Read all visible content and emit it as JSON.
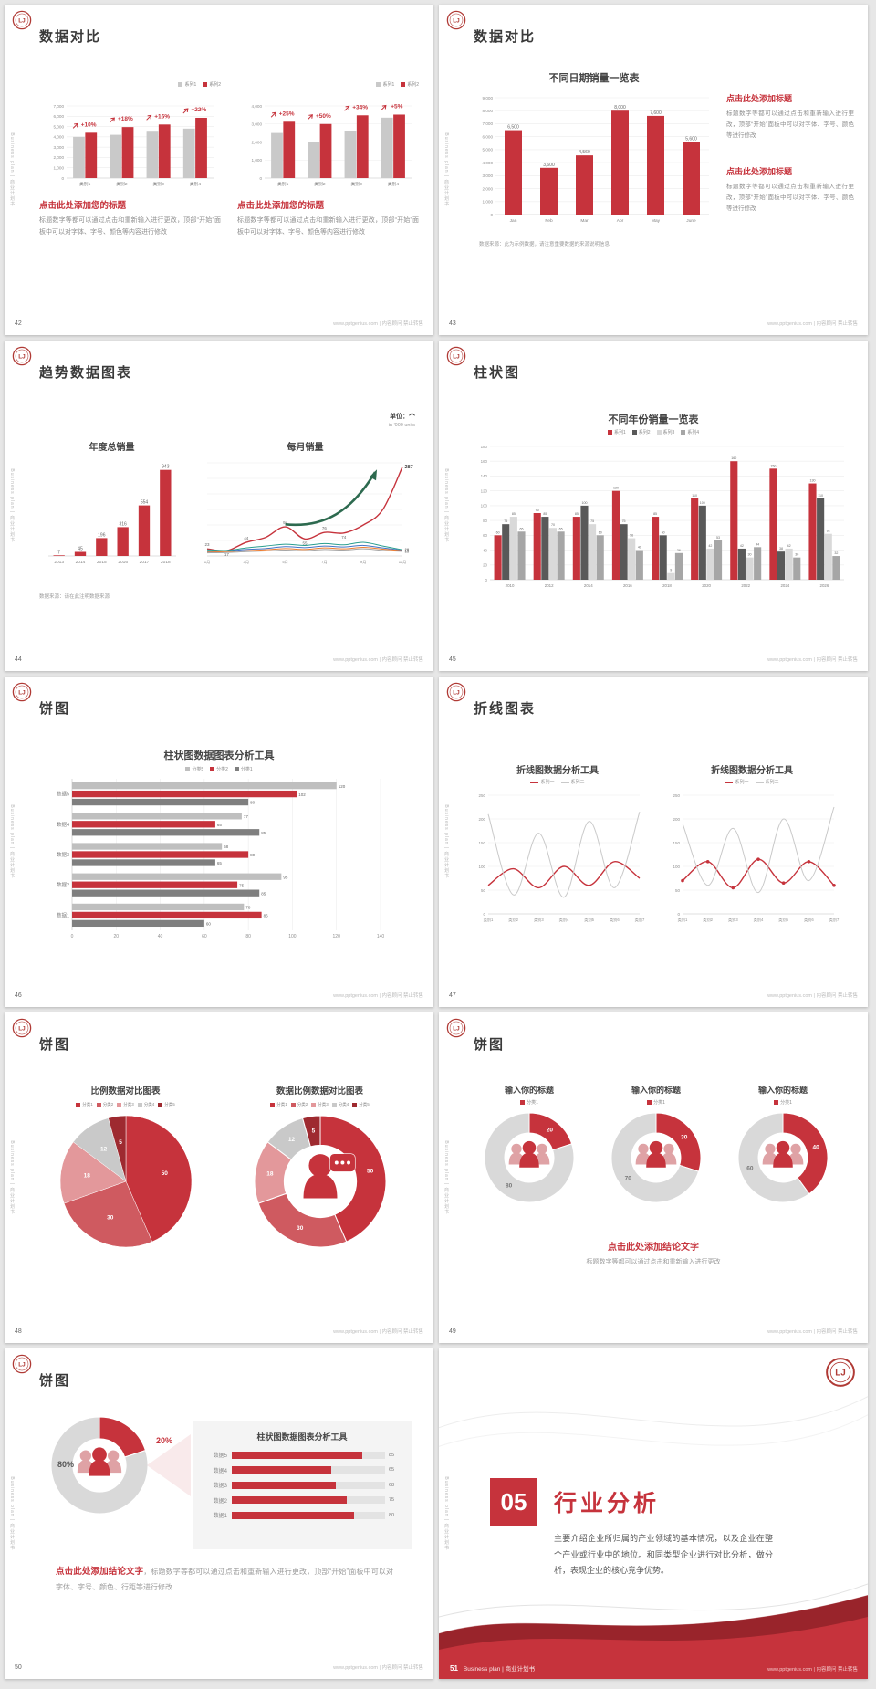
{
  "page": {
    "sidebar_text": "Business plan | 商业计划书",
    "footer_site": "www.pptgenius.com | 内容顾问 禁止转售",
    "accent": "#c6333c"
  },
  "common": {
    "edit_body": "标题数字等都可以通过点击和重新输入进行更改，顶部“开始”面板中可以对字体、字号、颜色等内容进行修改",
    "edit_body2": "标题数字等都可以通过点击和重新输入进行更改，顶部“开始”面板中可以对字体、字号、颜色等进行修改"
  },
  "slides": [
    {
      "page_no": "42",
      "title": "数据对比",
      "charts": [
        {
          "type": "bar",
          "ymax": 7000,
          "ystep": 1000,
          "bwr": 0.66,
          "legend": [
            {
              "label": "系列1",
              "color": "#c9c9c9"
            },
            {
              "label": "系列2",
              "color": "#c6333c"
            }
          ],
          "categories": [
            "类别1",
            "类别2",
            "类别3",
            "类别4"
          ],
          "series": [
            {
              "name": "系列1",
              "color": "#c9c9c9",
              "values": [
                4000,
                4200,
                4500,
                4800
              ]
            },
            {
              "name": "系列2",
              "color": "#c6333c",
              "values": [
                4400,
                4950,
                5200,
                5850
              ]
            }
          ],
          "growth_labels": [
            "+10%",
            "+18%",
            "+16%",
            "+22%"
          ]
        },
        {
          "type": "bar",
          "ymax": 4000,
          "ystep": 1000,
          "bwr": 0.66,
          "legend": [
            {
              "label": "系列1",
              "color": "#c9c9c9"
            },
            {
              "label": "系列2",
              "color": "#c6333c"
            }
          ],
          "categories": [
            "类别1",
            "类别2",
            "类别3",
            "类别4"
          ],
          "series": [
            {
              "name": "系列1",
              "color": "#c9c9c9",
              "values": [
                2500,
                2000,
                2600,
                3350
              ]
            },
            {
              "name": "系列2",
              "color": "#c6333c",
              "values": [
                3125,
                3000,
                3480,
                3520
              ]
            }
          ],
          "growth_labels": [
            "+25%",
            "+50%",
            "+34%",
            "+5%"
          ]
        }
      ],
      "blocks": [
        {
          "heading": "点击此处添加您的标题"
        },
        {
          "heading": "点击此处添加您的标题"
        }
      ]
    },
    {
      "page_no": "43",
      "title": "数据对比",
      "chart_title": "不同日期销量一览表",
      "chart": {
        "type": "bar",
        "ymax": 9000,
        "ystep": 1000,
        "bwr": 0.5,
        "show_labels": true,
        "lfs": 5,
        "categories": [
          "Jan",
          "Feb",
          "Mar",
          "Apr",
          "May",
          "June"
        ],
        "series": [
          {
            "name": "销量",
            "color": "#c6333c",
            "values": [
              6500,
              3600,
              4560,
              8000,
              7600,
              5600
            ]
          }
        ]
      },
      "note": "数据来源：此为示例数据，请注意重要数据的来源说明信息",
      "blocks": [
        {
          "heading": "点击此处添加标题"
        },
        {
          "heading": "点击此处添加标题"
        }
      ]
    },
    {
      "page_no": "44",
      "title": "趋势数据图表",
      "unit_label": "单位：个",
      "unit_sub": "in '000 units",
      "left_title": "年度总销量",
      "right_title": "每月销量",
      "left_chart": {
        "type": "bar",
        "ymax": 1000,
        "ystep": 250,
        "bwr": 0.55,
        "hide_y": true,
        "hide_grid": true,
        "show_labels": true,
        "lfs": 5,
        "categories": [
          "2013",
          "2014",
          "2015",
          "2016",
          "2017",
          "2018"
        ],
        "series": [
          {
            "name": "年度总销量",
            "color": "#c6333c",
            "values": [
              7,
              45,
              196,
              316,
              554,
              943
            ]
          }
        ]
      },
      "right_chart": {
        "type": "line",
        "ymax": 300,
        "ystep": 50,
        "hide_y": true,
        "smooth": true,
        "arrow": true,
        "x": [
          "1月",
          "2月",
          "3月",
          "4月",
          "5月",
          "6月",
          "7月",
          "8月",
          "9月",
          "10月",
          "11月"
        ],
        "xticks": [
          "1月",
          "3月",
          "5月",
          "7月",
          "9月",
          "11月"
        ],
        "series": [
          {
            "name": "系列1",
            "color": "#c6333c",
            "values": [
              23,
              17,
              44,
              60,
              94,
              55,
              76,
              74,
              100,
              150,
              287
            ],
            "width": 1.4,
            "end_label": "287"
          },
          {
            "name": "系列2",
            "color": "#2a9d8f",
            "values": [
              20,
              18,
              26,
              32,
              38,
              34,
              40,
              36,
              44,
              32,
              20
            ],
            "end_label": "20"
          },
          {
            "name": "系列3",
            "color": "#4472c4",
            "values": [
              15,
              16,
              21,
              24,
              30,
              27,
              32,
              29,
              34,
              26,
              18
            ],
            "end_label": "18"
          },
          {
            "name": "系列4",
            "color": "#ed7d31",
            "values": [
              12,
              14,
              17,
              20,
              24,
              21,
              26,
              23,
              28,
              22,
              17
            ],
            "end_label": "17"
          },
          {
            "name": "系列5",
            "color": "#a6a6a6",
            "values": [
              10,
              11,
              14,
              16,
              19,
              17,
              21,
              19,
              23,
              18,
              15
            ],
            "end_label": "15"
          }
        ],
        "point_labels": [
          {
            "t": "23",
            "s": 0,
            "i": 0,
            "dy": -3
          },
          {
            "t": "17",
            "s": 0,
            "i": 1,
            "dy": 6
          },
          {
            "t": "44",
            "s": 0,
            "i": 2,
            "dy": -3
          },
          {
            "t": "94",
            "s": 0,
            "i": 4,
            "dy": -3
          },
          {
            "t": "55",
            "s": 0,
            "i": 5,
            "dy": 6
          },
          {
            "t": "76",
            "s": 0,
            "i": 6,
            "dy": -3
          },
          {
            "t": "74",
            "s": 0,
            "i": 7,
            "dy": 6
          }
        ]
      },
      "note": "数据来源：请在此注明数据来源"
    },
    {
      "page_no": "45",
      "title": "柱状图",
      "chart_title": "不同年份销量一览表",
      "legend": [
        {
          "label": "系列1",
          "color": "#c6333c"
        },
        {
          "label": "系列2",
          "color": "#595959"
        },
        {
          "label": "系列3",
          "color": "#d9d9d9"
        },
        {
          "label": "系列4",
          "color": "#a6a6a6"
        }
      ],
      "chart": {
        "type": "bar",
        "ymax": 180,
        "ystep": 20,
        "bwr": 0.8,
        "show_labels": true,
        "lfs": 3.6,
        "fs": 4.4,
        "categories": [
          "2010",
          "2012",
          "2014",
          "2016",
          "2018",
          "2020",
          "2022",
          "2024",
          "2026"
        ],
        "series": [
          {
            "name": "系列1",
            "color": "#c6333c",
            "values": [
              60,
              90,
              85,
              120,
              85,
              110,
              160,
              150,
              130
            ]
          },
          {
            "name": "系列2",
            "color": "#595959",
            "values": [
              75,
              85,
              100,
              75,
              60,
              100,
              42,
              38,
              110
            ]
          },
          {
            "name": "系列3",
            "color": "#d9d9d9",
            "values": [
              85,
              70,
              75,
              56,
              9,
              42,
              30,
              42,
              62
            ]
          },
          {
            "name": "系列4",
            "color": "#a6a6a6",
            "values": [
              65,
              65,
              60,
              40,
              36,
              53,
              44,
              30,
              32
            ]
          }
        ]
      }
    },
    {
      "page_no": "46",
      "title": "饼图",
      "chart_title": "柱状图数据图表分析工具",
      "legend": [
        {
          "label": "分类5",
          "color": "#bfbfbf"
        },
        {
          "label": "分类2",
          "color": "#c6333c"
        },
        {
          "label": "分类1",
          "color": "#7f7f7f"
        }
      ],
      "chart": {
        "type": "hbar",
        "xmax": 140,
        "xstep": 20,
        "show_labels": true,
        "categories": [
          "数据5",
          "数据4",
          "数据3",
          "数据2",
          "数据1"
        ],
        "series": [
          {
            "name": "分类5",
            "color": "#bfbfbf",
            "values": [
              120,
              77,
              68,
              95,
              78
            ]
          },
          {
            "name": "分类2",
            "color": "#c6333c",
            "values": [
              102,
              65,
              80,
              75,
              86
            ]
          },
          {
            "name": "分类1",
            "color": "#7f7f7f",
            "values": [
              80,
              85,
              65,
              85,
              60
            ]
          }
        ]
      }
    },
    {
      "page_no": "47",
      "title": "折线图表",
      "charts": [
        {
          "title": "折线图数据分析工具",
          "legend": [
            {
              "label": "系列一",
              "color": "#c6333c",
              "shape": "line"
            },
            {
              "label": "系列二",
              "color": "#c9c9c9",
              "shape": "line"
            }
          ],
          "chart": {
            "type": "line",
            "ymax": 250,
            "ystep": 50,
            "smooth": true,
            "x": [
              "类别1",
              "类别2",
              "类别3",
              "类别4",
              "类别5",
              "类别6",
              "类别7"
            ],
            "series": [
              {
                "name": "系列一",
                "color": "#c6333c",
                "values": [
                  60,
                  95,
                  55,
                  100,
                  60,
                  110,
                  75
                ],
                "width": 1.4
              },
              {
                "name": "系列二",
                "color": "#c9c9c9",
                "values": [
                  210,
                  40,
                  170,
                  35,
                  195,
                  55,
                  215
                ]
              }
            ]
          }
        },
        {
          "title": "折线图数据分析工具",
          "legend": [
            {
              "label": "系列一",
              "color": "#c6333c",
              "shape": "line"
            },
            {
              "label": "系列二",
              "color": "#c9c9c9",
              "shape": "line"
            }
          ],
          "chart": {
            "type": "line",
            "ymax": 250,
            "ystep": 50,
            "smooth": true,
            "x": [
              "类别1",
              "类别2",
              "类别3",
              "类别4",
              "类别5",
              "类别6",
              "类别7"
            ],
            "series": [
              {
                "name": "系列一",
                "color": "#c6333c",
                "values": [
                  70,
                  110,
                  55,
                  115,
                  65,
                  110,
                  60
                ],
                "width": 1.4,
                "markers": true
              },
              {
                "name": "系列二",
                "color": "#c9c9c9",
                "values": [
                  190,
                  60,
                  180,
                  45,
                  200,
                  70,
                  225
                ]
              }
            ]
          }
        }
      ]
    },
    {
      "page_no": "48",
      "title": "饼图",
      "panels": [
        {
          "title": "比例数据对比图表",
          "legend": [
            {
              "label": "分类1",
              "color": "#c6333c"
            },
            {
              "label": "分类2",
              "color": "#cf5a60"
            },
            {
              "label": "分类3",
              "color": "#e3989b"
            },
            {
              "label": "分类4",
              "color": "#c9c9c9"
            },
            {
              "label": "分类5",
              "color": "#9e2a30"
            }
          ],
          "chart": {
            "type": "pie",
            "values": [
              50,
              30,
              18,
              12,
              5
            ],
            "labels": [
              "50",
              "30",
              "18",
              "12",
              "5"
            ],
            "colors": [
              "#c6333c",
              "#cf5a60",
              "#e3989b",
              "#c9c9c9",
              "#9e2a30"
            ]
          }
        },
        {
          "title": "数据比例数据对比图表",
          "legend": [
            {
              "label": "分类1",
              "color": "#c6333c"
            },
            {
              "label": "分类2",
              "color": "#cf5a60"
            },
            {
              "label": "分类3",
              "color": "#e3989b"
            },
            {
              "label": "分类4",
              "color": "#c9c9c9"
            },
            {
              "label": "分类5",
              "color": "#9e2a30"
            }
          ],
          "chart": {
            "type": "donut",
            "values": [
              50,
              30,
              18,
              12,
              5
            ],
            "labels": [
              "50",
              "30",
              "18",
              "12",
              "5"
            ],
            "colors": [
              "#c6333c",
              "#cf5a60",
              "#e3989b",
              "#c9c9c9",
              "#9e2a30"
            ],
            "center_icon": "person"
          }
        }
      ]
    },
    {
      "page_no": "49",
      "title": "饼图",
      "items": [
        {
          "title": "输入你的标题",
          "legend": [
            {
              "label": "分类1",
              "color": "#c6333c"
            }
          ],
          "chart": {
            "type": "donut",
            "values": [
              20,
              80
            ],
            "labels": [
              "20",
              "80"
            ],
            "colors": [
              "#c6333c",
              "#d9d9d9"
            ],
            "label_colors": [
              "#ffffff",
              "#777777"
            ],
            "center_icon": "people"
          }
        },
        {
          "title": "输入你的标题",
          "legend": [
            {
              "label": "分类1",
              "color": "#c6333c"
            }
          ],
          "chart": {
            "type": "donut",
            "values": [
              30,
              70
            ],
            "labels": [
              "30",
              "70"
            ],
            "colors": [
              "#c6333c",
              "#d9d9d9"
            ],
            "label_colors": [
              "#ffffff",
              "#777777"
            ],
            "center_icon": "people"
          }
        },
        {
          "title": "输入你的标题",
          "legend": [
            {
              "label": "分类1",
              "color": "#c6333c"
            }
          ],
          "chart": {
            "type": "donut",
            "values": [
              40,
              60
            ],
            "labels": [
              "40",
              "60"
            ],
            "colors": [
              "#c6333c",
              "#d9d9d9"
            ],
            "label_colors": [
              "#ffffff",
              "#777777"
            ],
            "center_icon": "people"
          }
        }
      ],
      "conclusion": "点击此处添加结论文字",
      "conclusion_sub": "标题数字等都可以通过点击和重新输入进行更改"
    },
    {
      "page_no": "50",
      "title": "饼图",
      "donut": {
        "type": "donut",
        "values": [
          20,
          80
        ],
        "colors": [
          "#c6333c",
          "#d9d9d9"
        ],
        "center_icon": "people"
      },
      "pct_red": "20%",
      "pct_gray": "80%",
      "panel": {
        "title": "柱状图数据图表分析工具",
        "max": 100,
        "rows": [
          {
            "label": "数据5",
            "value": 85
          },
          {
            "label": "数据4",
            "value": 65
          },
          {
            "label": "数据3",
            "value": 68
          },
          {
            "label": "数据2",
            "value": 75
          },
          {
            "label": "数据1",
            "value": 80
          }
        ]
      },
      "conclusion": "点击此处添加结论文字",
      "conclusion_sub": "，标题数字等都可以通过点击和重新输入进行更改，顶部“开始”面板中可以对字体、字号、颜色、行距等进行修改"
    },
    {
      "page_no": "51",
      "number": "05",
      "title": "行业分析",
      "body": "主要介绍企业所归属的产业领域的基本情况，以及企业在整个产业或行业中的地位。和同类型企业进行对比分析，做分析，表现企业的核心竞争优势。",
      "footer_text": "Business plan | 商业计划书"
    }
  ]
}
